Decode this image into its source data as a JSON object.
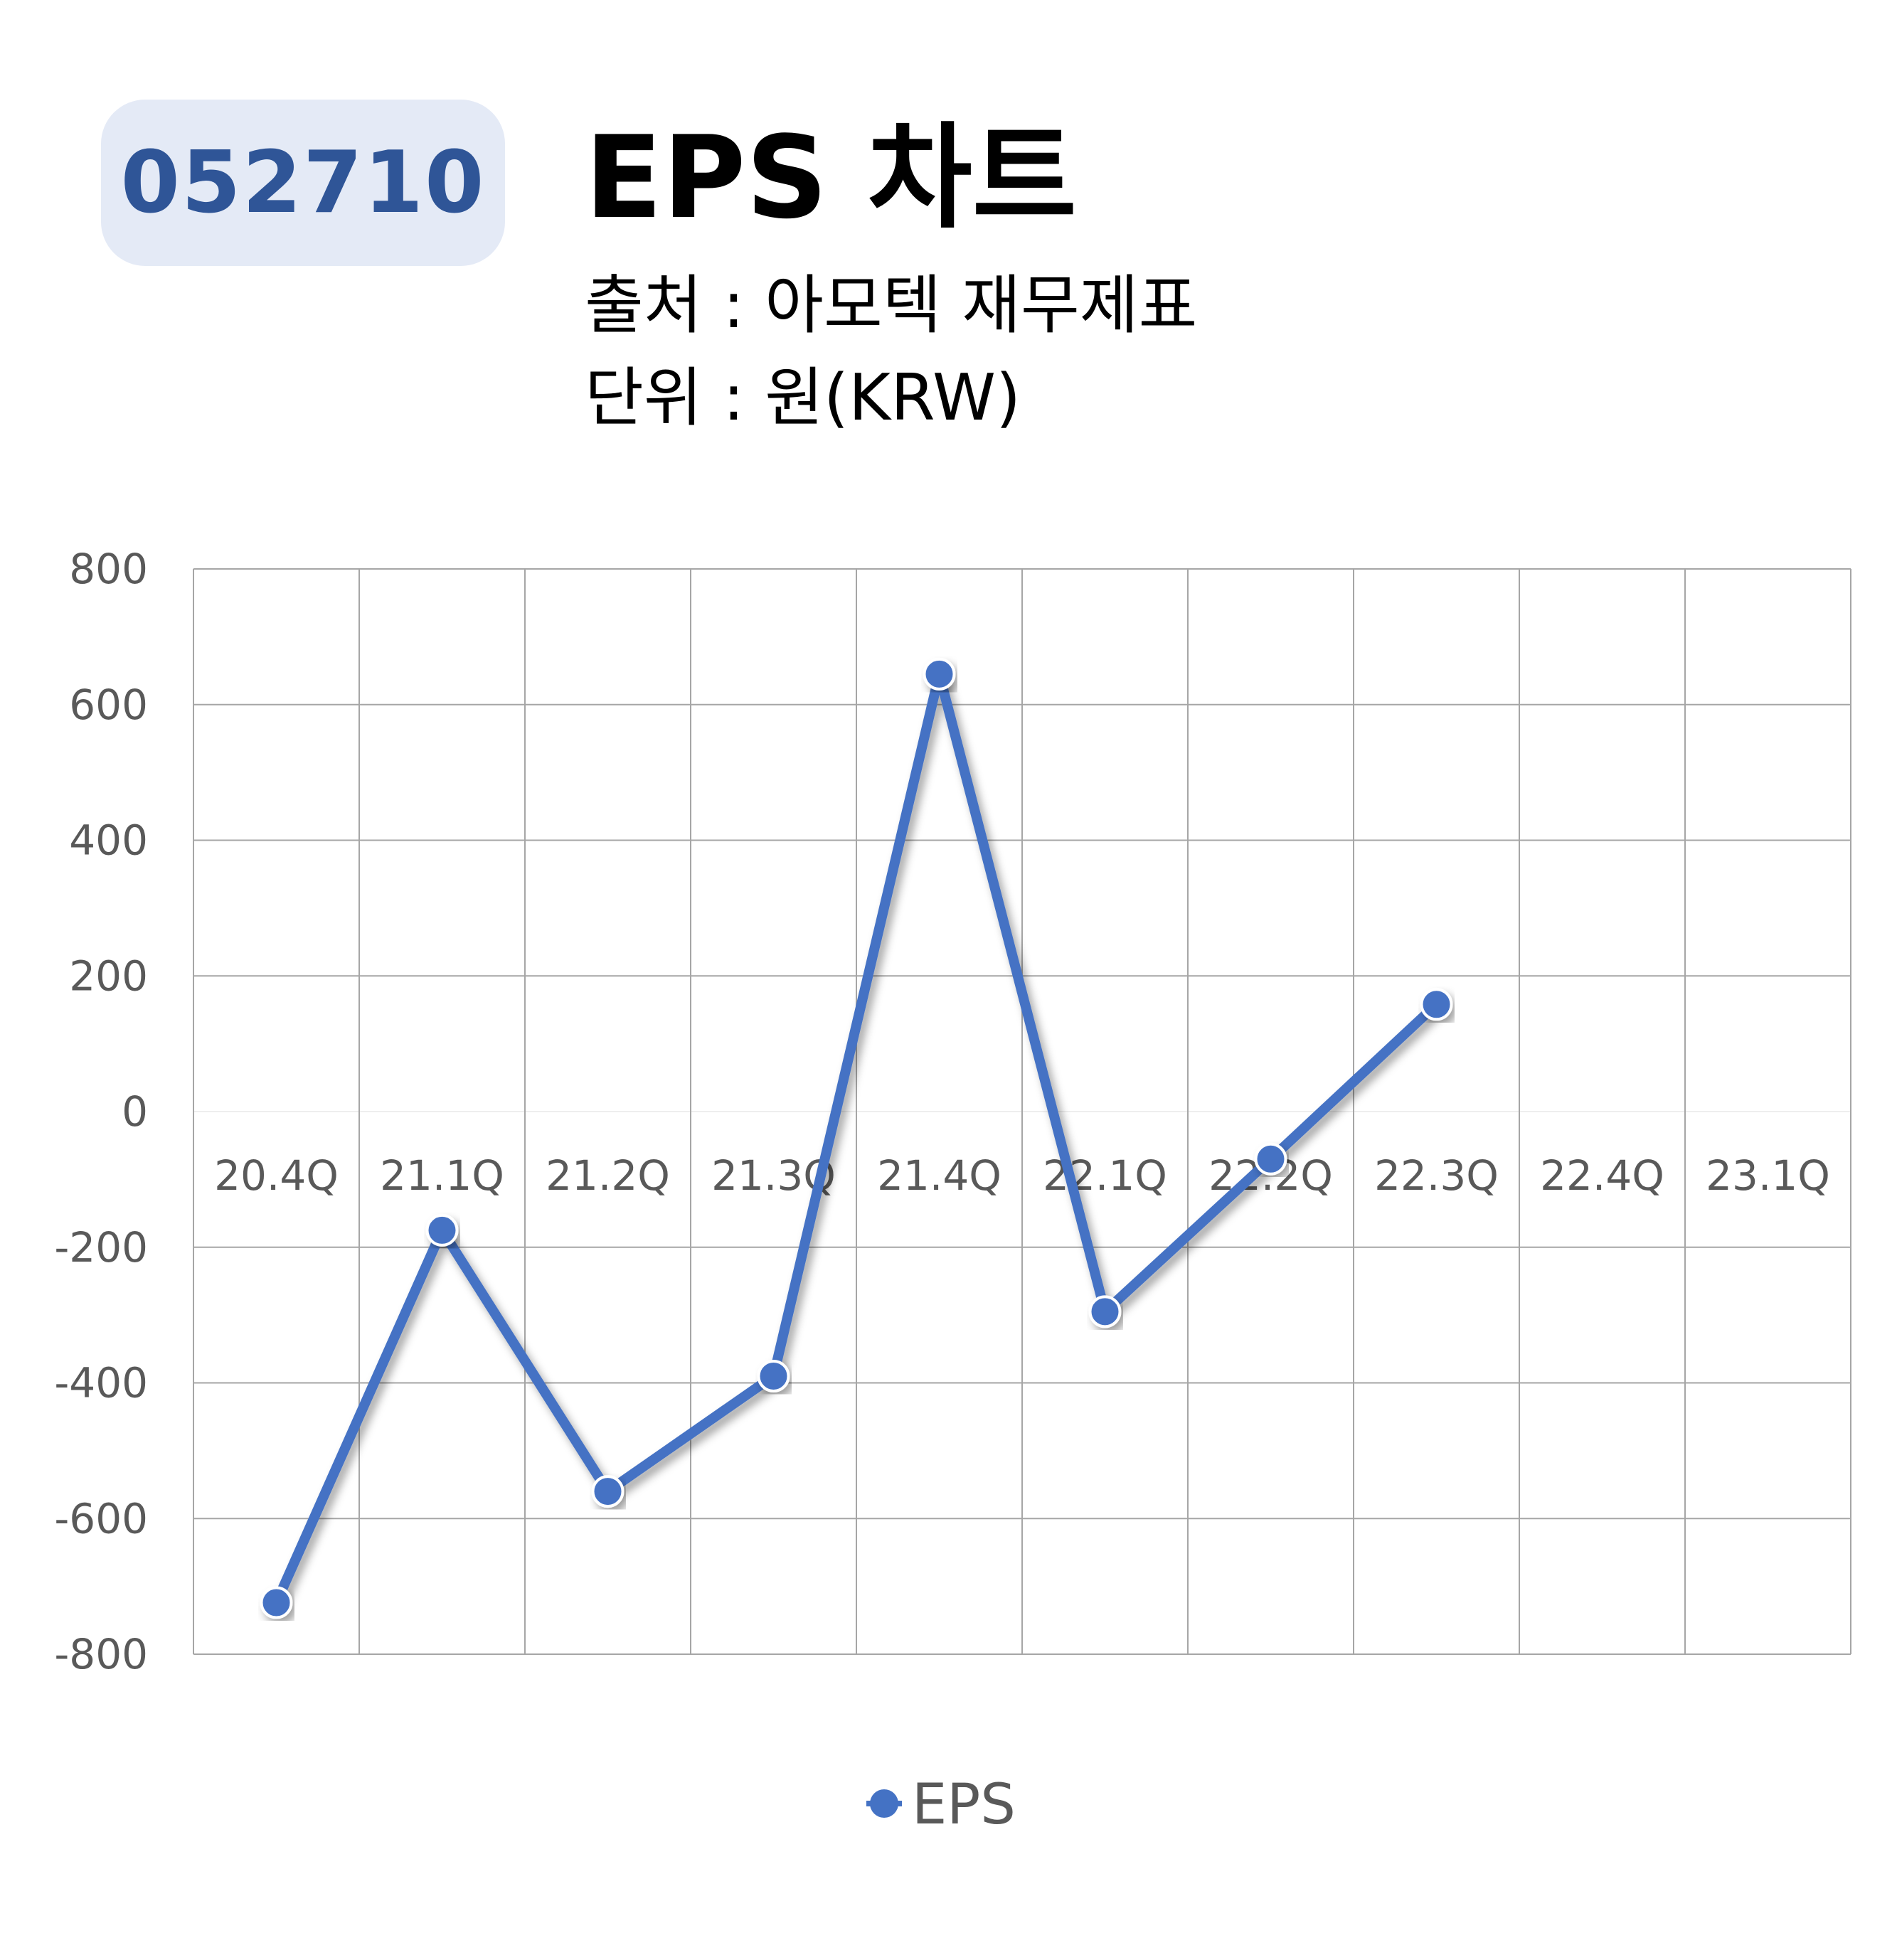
{
  "header": {
    "ticker": "052710",
    "title": "EPS 차트",
    "source": "출처 : 아모텍 재무제표",
    "unit": "단위 : 원(KRW)"
  },
  "colors": {
    "series": "#4472c4",
    "badge_bg": "#e4eaf6",
    "badge_text": "#2f5597",
    "grid": "#a6a6a6"
  },
  "chart_data": {
    "type": "line",
    "categories": [
      "20.4Q",
      "21.1Q",
      "21.2Q",
      "21.3Q",
      "21.4Q",
      "22.1Q",
      "22.2Q",
      "22.3Q",
      "22.4Q",
      "23.1Q"
    ],
    "series": [
      {
        "name": "EPS",
        "values": [
          -724,
          -175,
          -560,
          -390,
          645,
          -295,
          -70,
          158,
          null,
          null
        ]
      }
    ],
    "ylim": [
      -800,
      800
    ],
    "yticks": [
      800,
      600,
      400,
      200,
      0,
      -200,
      -400,
      -600,
      -800
    ],
    "grid": true,
    "legend": "bottom"
  }
}
